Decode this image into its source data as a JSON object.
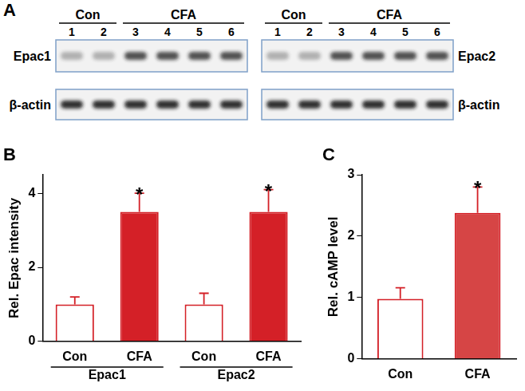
{
  "blot": {
    "panel": "A",
    "groups": [
      {
        "label": "Con",
        "lanes": [
          "1",
          "2"
        ]
      },
      {
        "label": "CFA",
        "lanes": [
          "3",
          "4",
          "5",
          "6"
        ]
      }
    ],
    "blots": [
      {
        "proteins": [
          "Epac1",
          "β-actin"
        ]
      },
      {
        "proteins": [
          "Epac2",
          "β-actin"
        ]
      }
    ]
  },
  "chart_data": [
    {
      "type": "bar",
      "title": "B",
      "y_label": "Rel. Epac intensity",
      "categories": [
        "Con",
        "CFA",
        "Con",
        "CFA"
      ],
      "groups": [
        "Epac1",
        "Epac1",
        "Epac2",
        "Epac2"
      ],
      "values": [
        1.0,
        3.5,
        1.0,
        3.5
      ],
      "errors": [
        0.2,
        0.5,
        0.3,
        0.6
      ],
      "colors": [
        "#ffffff",
        "#d42027",
        "#ffffff",
        "#d42027"
      ],
      "color": "#d42027",
      "ylim": [
        0,
        4.5
      ],
      "yticks": [
        0,
        2,
        4
      ],
      "grid": false,
      "annotations": [
        {
          "text": "*",
          "index": 1
        },
        {
          "text": "*",
          "index": 3
        }
      ]
    },
    {
      "type": "bar",
      "title": "C",
      "y_label": "Rel. cAMP level",
      "categories": [
        "Con",
        "CFA"
      ],
      "values": [
        0.98,
        2.38
      ],
      "errors": [
        0.18,
        0.42
      ],
      "colors": [
        "#ffffff",
        "#d64545"
      ],
      "color": "#d42027",
      "ylim": [
        0,
        3
      ],
      "yticks": [
        0,
        1,
        2,
        3
      ],
      "grid": false,
      "annotations": [
        {
          "text": "*",
          "index": 1
        }
      ]
    }
  ]
}
